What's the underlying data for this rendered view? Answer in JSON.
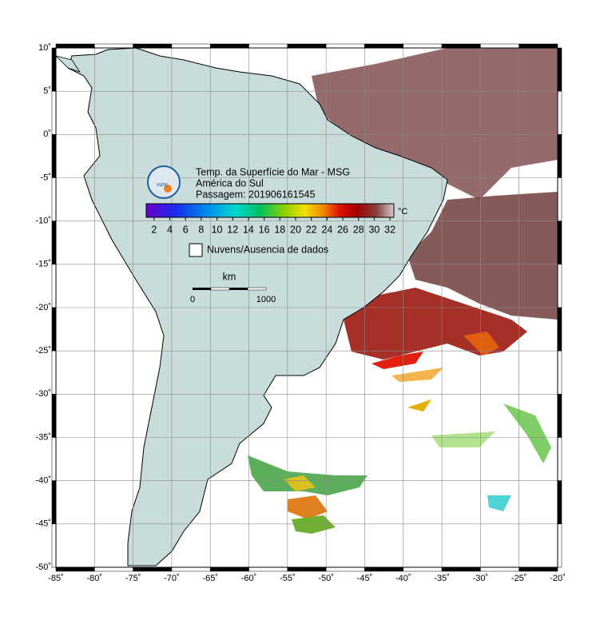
{
  "map": {
    "title_lines": [
      "Temp. da Superfície do Mar - MSG",
      "América do Sul",
      "Passagem: 201906161545"
    ],
    "logo": "INPE",
    "lon_ticks": [
      {
        "value": -85,
        "label": "-85˚"
      },
      {
        "value": -80,
        "label": "-80˚"
      },
      {
        "value": -75,
        "label": "-75˚"
      },
      {
        "value": -70,
        "label": "-70˚"
      },
      {
        "value": -65,
        "label": "-65˚"
      },
      {
        "value": -60,
        "label": "-60˚"
      },
      {
        "value": -55,
        "label": "-55˚"
      },
      {
        "value": -50,
        "label": "-50˚"
      },
      {
        "value": -45,
        "label": "-45˚"
      },
      {
        "value": -40,
        "label": "-40˚"
      },
      {
        "value": -35,
        "label": "-35˚"
      },
      {
        "value": -30,
        "label": "-30˚"
      },
      {
        "value": -25,
        "label": "-25˚"
      },
      {
        "value": -20,
        "label": "-20˚"
      }
    ],
    "lat_ticks": [
      {
        "value": 10,
        "label": "10˚"
      },
      {
        "value": 5,
        "label": "5˚"
      },
      {
        "value": 0,
        "label": "0˚"
      },
      {
        "value": -5,
        "label": "-5˚"
      },
      {
        "value": -10,
        "label": "-10˚"
      },
      {
        "value": -15,
        "label": "-15˚"
      },
      {
        "value": -20,
        "label": "-20˚"
      },
      {
        "value": -25,
        "label": "-25˚"
      },
      {
        "value": -30,
        "label": "-30˚"
      },
      {
        "value": -35,
        "label": "-35˚"
      },
      {
        "value": -40,
        "label": "-40˚"
      },
      {
        "value": -45,
        "label": "-45˚"
      },
      {
        "value": -50,
        "label": "-50˚"
      }
    ],
    "lonlim": [
      -85,
      -20
    ],
    "latlim": [
      -50,
      10
    ],
    "colorbar": {
      "unit": "°C",
      "clim": [
        1,
        32.5
      ],
      "ticks": [
        2,
        4,
        6,
        8,
        10,
        12,
        14,
        16,
        18,
        20,
        22,
        24,
        26,
        28,
        30,
        32
      ]
    },
    "legend": "Nuvens/Ausencia de dados",
    "scale": {
      "unit": "km",
      "labels": [
        "0",
        "1000"
      ]
    }
  }
}
